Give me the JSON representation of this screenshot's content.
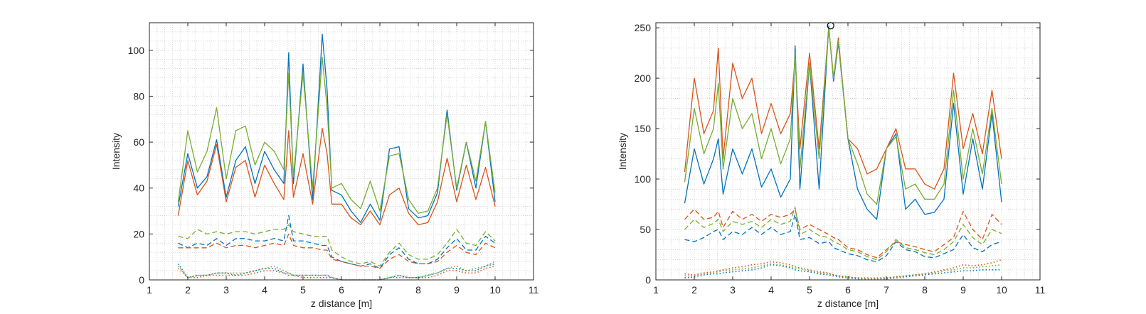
{
  "colors": {
    "blue": "#0072BD",
    "orange": "#D95319",
    "green": "#77AC30",
    "axis": "#262626",
    "grid": "#c8c8c8"
  },
  "chart_data": [
    {
      "type": "line",
      "title": "",
      "xlabel": "z distance [m]",
      "ylabel": "Intensity",
      "xlim": [
        1,
        11
      ],
      "ylim": [
        0,
        112
      ],
      "xticks": [
        1,
        2,
        3,
        4,
        5,
        6,
        7,
        8,
        9,
        10,
        11
      ],
      "yticks": [
        0,
        20,
        40,
        60,
        80,
        100
      ],
      "grid": "minor dotted",
      "x": [
        1.75,
        2.0,
        2.25,
        2.5,
        2.75,
        3.0,
        3.25,
        3.5,
        3.75,
        4.0,
        4.25,
        4.5,
        4.625,
        4.75,
        5.0,
        5.25,
        5.5,
        5.625,
        5.75,
        6.0,
        6.25,
        6.5,
        6.75,
        7.0,
        7.25,
        7.5,
        7.75,
        8.0,
        8.25,
        8.5,
        8.75,
        9.0,
        9.25,
        9.5,
        9.75,
        10.0
      ],
      "series": [
        {
          "color": "blue",
          "style": "solid",
          "values": [
            32,
            55,
            40,
            45,
            61,
            36,
            52,
            58,
            42,
            56,
            48,
            42,
            99,
            42,
            94,
            35,
            107,
            83,
            39,
            37,
            30,
            25,
            33,
            26,
            57,
            58,
            31,
            27,
            28,
            38,
            74,
            39,
            60,
            40,
            69,
            34
          ]
        },
        {
          "color": "orange",
          "style": "solid",
          "values": [
            28,
            52,
            37,
            43,
            59,
            34,
            49,
            52,
            36,
            50,
            42,
            35,
            65,
            36,
            55,
            33,
            66,
            55,
            33,
            33,
            27,
            24,
            30,
            24,
            37,
            40,
            29,
            24,
            25,
            34,
            53,
            34,
            50,
            35,
            49,
            32
          ]
        },
        {
          "color": "green",
          "style": "solid",
          "values": [
            34,
            65,
            47,
            56,
            75,
            44,
            65,
            67,
            50,
            60,
            56,
            48,
            90,
            45,
            90,
            40,
            97,
            75,
            40,
            42,
            35,
            31,
            43,
            30,
            54,
            55,
            35,
            29,
            30,
            40,
            72,
            40,
            60,
            43,
            69,
            38
          ]
        },
        {
          "color": "blue",
          "style": "dash",
          "values": [
            16,
            14,
            16,
            15,
            18,
            15,
            18,
            18,
            17,
            17,
            18,
            17,
            28,
            17,
            17,
            16,
            15,
            15,
            10,
            8,
            7,
            6,
            7,
            5,
            11,
            14,
            9,
            7,
            7,
            9,
            14,
            18,
            13,
            13,
            19,
            16
          ]
        },
        {
          "color": "orange",
          "style": "dash",
          "values": [
            14,
            14,
            14,
            14,
            16,
            14,
            15,
            15,
            14,
            15,
            16,
            15,
            20,
            15,
            14,
            14,
            13,
            13,
            9,
            8,
            7,
            6,
            6,
            5,
            9,
            11,
            8,
            7,
            7,
            8,
            12,
            15,
            12,
            11,
            16,
            14
          ]
        },
        {
          "color": "green",
          "style": "dash",
          "values": [
            19,
            18,
            22,
            20,
            21,
            20,
            21,
            21,
            20,
            21,
            22,
            22,
            24,
            21,
            20,
            19,
            19,
            19,
            13,
            10,
            8,
            7,
            8,
            6,
            12,
            16,
            11,
            9,
            9,
            11,
            16,
            22,
            16,
            15,
            21,
            17
          ]
        },
        {
          "color": "blue",
          "style": "dot",
          "values": [
            7,
            1,
            2,
            2,
            3,
            3,
            2,
            3,
            4,
            5,
            5,
            3,
            3,
            2,
            2,
            2,
            2,
            2,
            1,
            0,
            0,
            0,
            0,
            0,
            1,
            2,
            1,
            1,
            2,
            3,
            5,
            5,
            4,
            4,
            6,
            7
          ]
        },
        {
          "color": "orange",
          "style": "dot",
          "values": [
            5,
            1,
            1,
            2,
            2,
            2,
            2,
            2,
            3,
            4,
            4,
            3,
            2,
            2,
            1,
            1,
            1,
            1,
            1,
            0,
            0,
            0,
            0,
            0,
            1,
            1,
            1,
            1,
            1,
            2,
            4,
            4,
            3,
            3,
            5,
            6
          ]
        },
        {
          "color": "green",
          "style": "dot",
          "values": [
            6,
            1,
            2,
            2,
            3,
            3,
            3,
            3,
            4,
            5,
            6,
            4,
            3,
            2,
            2,
            2,
            2,
            2,
            1,
            0,
            0,
            0,
            0,
            0,
            1,
            2,
            1,
            1,
            2,
            3,
            5,
            6,
            4,
            5,
            6,
            8
          ]
        }
      ]
    },
    {
      "type": "line",
      "title": "",
      "xlabel": "z distance [m]",
      "ylabel": "Intensity",
      "xlim": [
        1,
        11
      ],
      "ylim": [
        0,
        255
      ],
      "xticks": [
        1,
        2,
        3,
        4,
        5,
        6,
        7,
        8,
        9,
        10,
        11
      ],
      "yticks": [
        0,
        50,
        100,
        150,
        200,
        250
      ],
      "grid": "minor dotted",
      "marker": {
        "x": 5.55,
        "y": 252,
        "shape": "open-circle"
      },
      "x": [
        1.75,
        2.0,
        2.25,
        2.5,
        2.625,
        2.75,
        3.0,
        3.25,
        3.5,
        3.75,
        4.0,
        4.25,
        4.5,
        4.625,
        4.75,
        5.0,
        5.25,
        5.5,
        5.625,
        5.75,
        6.0,
        6.25,
        6.5,
        6.75,
        7.0,
        7.25,
        7.5,
        7.75,
        8.0,
        8.25,
        8.5,
        8.75,
        9.0,
        9.25,
        9.5,
        9.75,
        10.0
      ],
      "series": [
        {
          "color": "blue",
          "style": "solid",
          "values": [
            76,
            130,
            95,
            120,
            140,
            85,
            130,
            105,
            130,
            92,
            110,
            82,
            100,
            232,
            90,
            215,
            90,
            252,
            197,
            235,
            140,
            90,
            70,
            60,
            130,
            145,
            70,
            80,
            65,
            67,
            80,
            175,
            85,
            140,
            90,
            165,
            77
          ]
        },
        {
          "color": "orange",
          "style": "solid",
          "values": [
            107,
            200,
            145,
            168,
            230,
            120,
            215,
            180,
            200,
            145,
            175,
            145,
            165,
            220,
            130,
            225,
            130,
            250,
            200,
            240,
            140,
            130,
            105,
            110,
            130,
            150,
            110,
            110,
            95,
            90,
            110,
            205,
            130,
            165,
            125,
            188,
            120
          ]
        },
        {
          "color": "green",
          "style": "solid",
          "values": [
            97,
            170,
            125,
            150,
            195,
            110,
            180,
            150,
            165,
            120,
            150,
            115,
            140,
            225,
            110,
            215,
            120,
            250,
            200,
            237,
            140,
            115,
            85,
            75,
            130,
            142,
            90,
            95,
            80,
            80,
            95,
            188,
            100,
            150,
            105,
            170,
            95
          ]
        },
        {
          "color": "blue",
          "style": "dash",
          "values": [
            40,
            38,
            42,
            48,
            50,
            40,
            48,
            45,
            52,
            45,
            52,
            45,
            48,
            65,
            40,
            42,
            36,
            38,
            32,
            30,
            26,
            24,
            20,
            18,
            24,
            38,
            30,
            28,
            23,
            22,
            26,
            30,
            45,
            32,
            28,
            35,
            38
          ]
        },
        {
          "color": "orange",
          "style": "dash",
          "values": [
            60,
            70,
            60,
            62,
            68,
            52,
            68,
            60,
            65,
            58,
            65,
            62,
            65,
            70,
            50,
            55,
            50,
            45,
            42,
            40,
            32,
            30,
            25,
            22,
            30,
            38,
            35,
            33,
            30,
            28,
            35,
            42,
            68,
            50,
            40,
            65,
            55
          ]
        },
        {
          "color": "green",
          "style": "dash",
          "values": [
            50,
            60,
            52,
            56,
            60,
            48,
            58,
            55,
            58,
            52,
            60,
            55,
            58,
            72,
            45,
            50,
            44,
            42,
            38,
            36,
            30,
            28,
            23,
            20,
            28,
            40,
            32,
            30,
            27,
            25,
            30,
            38,
            55,
            42,
            35,
            50,
            46
          ]
        },
        {
          "color": "blue",
          "style": "dot",
          "values": [
            2,
            3,
            5,
            6,
            6,
            7,
            8,
            9,
            10,
            12,
            15,
            14,
            12,
            10,
            9,
            8,
            6,
            5,
            4,
            3,
            2,
            1,
            1,
            1,
            1,
            2,
            3,
            4,
            5,
            6,
            7,
            8,
            9,
            9,
            10,
            10,
            10
          ]
        },
        {
          "color": "orange",
          "style": "dot",
          "values": [
            6,
            5,
            7,
            8,
            9,
            10,
            12,
            13,
            15,
            16,
            18,
            17,
            15,
            13,
            12,
            10,
            8,
            7,
            5,
            4,
            3,
            2,
            2,
            2,
            2,
            3,
            4,
            5,
            6,
            8,
            10,
            12,
            15,
            14,
            15,
            17,
            20
          ]
        },
        {
          "color": "green",
          "style": "dot",
          "values": [
            4,
            4,
            6,
            7,
            8,
            9,
            10,
            11,
            12,
            14,
            16,
            15,
            13,
            12,
            11,
            9,
            7,
            6,
            5,
            4,
            3,
            2,
            1,
            1,
            2,
            3,
            4,
            5,
            6,
            7,
            9,
            10,
            12,
            12,
            13,
            14,
            15
          ]
        }
      ]
    }
  ]
}
